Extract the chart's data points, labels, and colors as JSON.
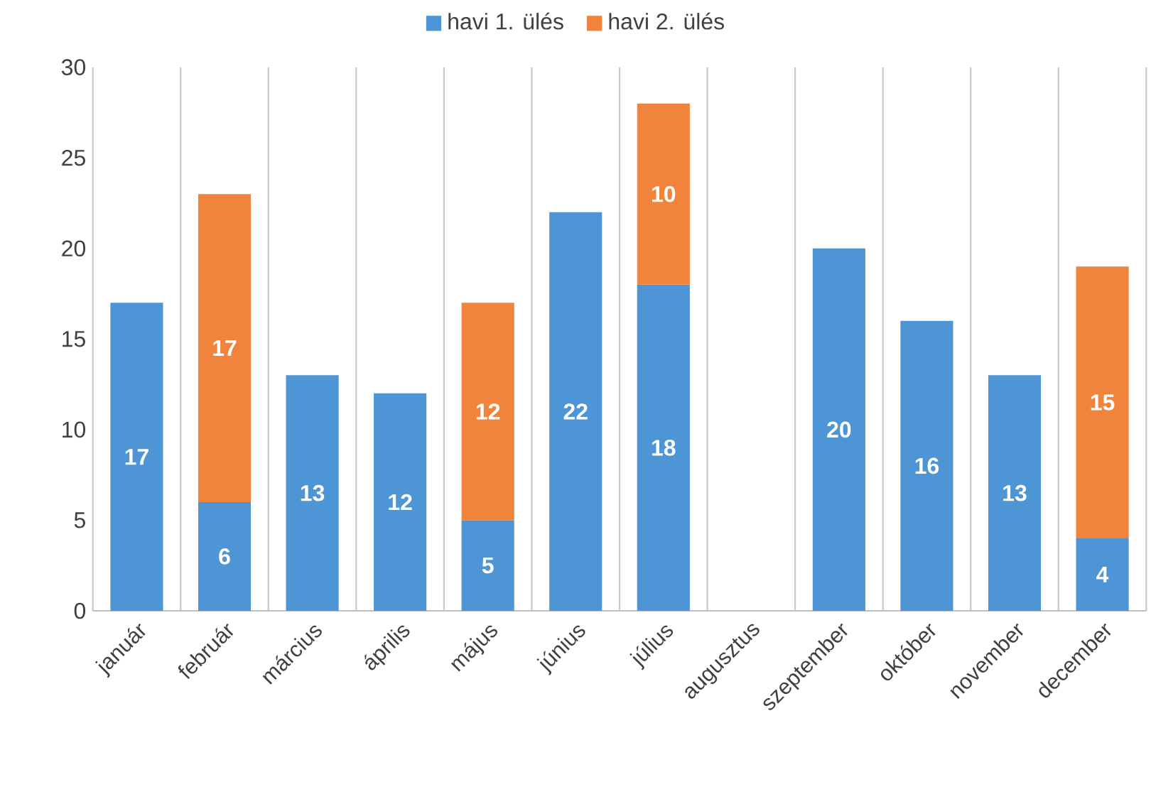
{
  "chart_data": {
    "type": "bar",
    "stacked": true,
    "categories": [
      "január",
      "február",
      "március",
      "április",
      "május",
      "június",
      "július",
      "augusztus",
      "szeptember",
      "október",
      "november",
      "december"
    ],
    "series": [
      {
        "name": "havi 1. ülés",
        "color": "#4e95d5",
        "values": [
          17,
          6,
          13,
          12,
          5,
          22,
          18,
          null,
          20,
          16,
          13,
          4
        ]
      },
      {
        "name": "havi 2. ülés",
        "color": "#f0843c",
        "values": [
          null,
          17,
          null,
          null,
          12,
          null,
          10,
          null,
          null,
          null,
          null,
          15
        ]
      }
    ],
    "ylim": [
      0,
      30
    ],
    "yticks": [
      0,
      5,
      10,
      15,
      20,
      25,
      30
    ],
    "grid": "x",
    "legend": "top",
    "data_labels": true
  }
}
